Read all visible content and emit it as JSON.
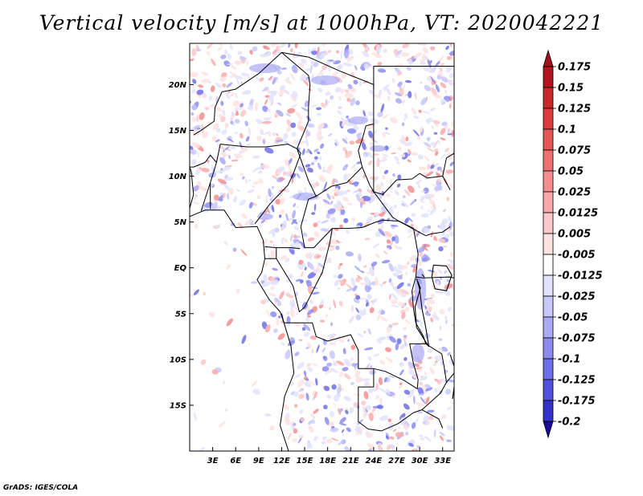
{
  "title": "Vertical velocity [m/s] at 1000hPa, VT: 2020042221",
  "footer": "GrADS: IGES/COLA",
  "map": {
    "projection": "latlon",
    "lon_range": [
      0,
      34.5
    ],
    "lat_range": [
      -20,
      24.5
    ],
    "lon_ticks": [
      {
        "v": 3,
        "label": "3E"
      },
      {
        "v": 6,
        "label": "6E"
      },
      {
        "v": 9,
        "label": "9E"
      },
      {
        "v": 12,
        "label": "12E"
      },
      {
        "v": 15,
        "label": "15E"
      },
      {
        "v": 18,
        "label": "18E"
      },
      {
        "v": 21,
        "label": "21E"
      },
      {
        "v": 24,
        "label": "24E"
      },
      {
        "v": 27,
        "label": "27E"
      },
      {
        "v": 30,
        "label": "30E"
      },
      {
        "v": 33,
        "label": "33E"
      }
    ],
    "lat_ticks": [
      {
        "v": 20,
        "label": "20N"
      },
      {
        "v": 15,
        "label": "15N"
      },
      {
        "v": 10,
        "label": "10N"
      },
      {
        "v": 5,
        "label": "5N"
      },
      {
        "v": 0,
        "label": "EQ"
      },
      {
        "v": -5,
        "label": "5S"
      },
      {
        "v": -10,
        "label": "10S"
      },
      {
        "v": -15,
        "label": "15S"
      }
    ]
  },
  "colorbar": {
    "levels": [
      {
        "label": "0.175",
        "color": "#b0141e"
      },
      {
        "label": "0.15",
        "color": "#c82828"
      },
      {
        "label": "0.125",
        "color": "#dc3c3c"
      },
      {
        "label": "0.1",
        "color": "#e65555"
      },
      {
        "label": "0.075",
        "color": "#ee7070"
      },
      {
        "label": "0.05",
        "color": "#f48e8e"
      },
      {
        "label": "0.025",
        "color": "#f8aaaa"
      },
      {
        "label": "0.0125",
        "color": "#fbc8c8"
      },
      {
        "label": "0.005",
        "color": "#fde2e2"
      },
      {
        "label": "-0.005",
        "color": "#ffffff"
      },
      {
        "label": "-0.0125",
        "color": "#e2e2fc"
      },
      {
        "label": "-0.025",
        "color": "#c8c8fa"
      },
      {
        "label": "-0.05",
        "color": "#aaaaf5"
      },
      {
        "label": "-0.075",
        "color": "#8c8cee"
      },
      {
        "label": "-0.1",
        "color": "#6e6ee6"
      },
      {
        "label": "-0.125",
        "color": "#5050dc"
      },
      {
        "label": "-0.175",
        "color": "#3232c8"
      },
      {
        "label": "-0.2",
        "color": "#1e1eb4"
      }
    ],
    "top_arrow_color": "#a01018",
    "bottom_arrow_color": "#1a0a9a"
  }
}
